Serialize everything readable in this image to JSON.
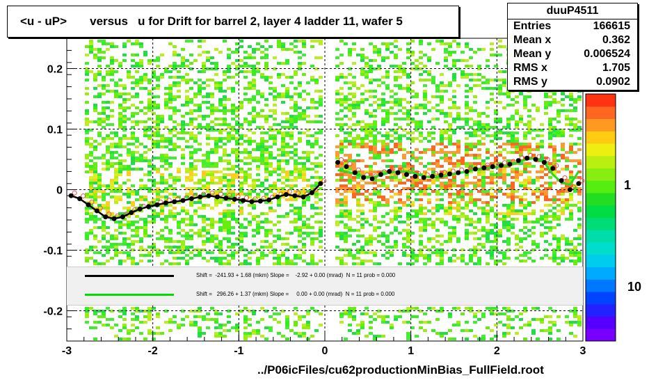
{
  "title": "<u - uP>       versus   u for Drift for barrel 2, layer 4 ladder 11, wafer 5",
  "stats": {
    "name": "duuP4511",
    "rows": [
      {
        "label": "Entries",
        "value": "166615"
      },
      {
        "label": "Mean x",
        "value": "0.362"
      },
      {
        "label": "Mean y",
        "value": "0.006524"
      },
      {
        "label": "RMS x",
        "value": "1.705"
      },
      {
        "label": "RMS y",
        "value": "0.0902"
      }
    ]
  },
  "footer": "../P06icFiles/cu62productionMinBias_FullField.root",
  "legend": [
    {
      "color": "#000000",
      "text": "Shift =  -241.93 + 1.68 (mkm) Slope =    -2.92 + 0.00 (mrad)  N = 11 prob = 0.000"
    },
    {
      "color": "#00dd00",
      "text": "Shift =   296.26 + 1.37 (mkm) Slope =     0.00 + 0.00 (mrad)  N = 11 prob = 0.000"
    }
  ],
  "colorbar_labels": [
    "1",
    "10"
  ],
  "colors": {
    "black_series": "#000000",
    "green_series": "#22dd22",
    "red_markers": "#ff4444"
  },
  "chart_data": {
    "type": "heatmap",
    "title": "<u - uP>       versus   u for Drift for barrel 2, layer 4 ladder 11, wafer 5",
    "xlim": [
      -3,
      3
    ],
    "ylim": [
      -0.25,
      0.25
    ],
    "x_ticks": [
      "-3",
      "-2",
      "-1",
      "0",
      "1",
      "2",
      "3"
    ],
    "y_ticks": [
      "-0.2",
      "-0.1",
      "0",
      "0.1",
      "0.2"
    ],
    "grid": true,
    "series": [
      {
        "color": "#000000",
        "x": [
          -2.95,
          -2.85,
          -2.75,
          -2.65,
          -2.55,
          -2.45,
          -2.35,
          -2.25,
          -2.15,
          -2.05,
          -1.95,
          -1.85,
          -1.75,
          -1.65,
          -1.55,
          -1.45,
          -1.35,
          -1.25,
          -1.15,
          -1.05,
          -0.95,
          -0.85,
          -0.75,
          -0.65,
          -0.55,
          -0.45,
          -0.35,
          -0.25,
          -0.15,
          -0.05,
          0.15,
          0.25,
          0.35,
          0.45,
          0.55,
          0.65,
          0.75,
          0.85,
          0.95,
          1.05,
          1.15,
          1.25,
          1.35,
          1.45,
          1.55,
          1.65,
          1.75,
          1.85,
          1.95,
          2.05,
          2.15,
          2.25,
          2.35,
          2.45,
          2.55,
          2.65,
          2.75,
          2.85,
          2.95
        ],
        "y": [
          -0.01,
          -0.015,
          -0.025,
          -0.035,
          -0.045,
          -0.048,
          -0.045,
          -0.038,
          -0.032,
          -0.028,
          -0.025,
          -0.022,
          -0.02,
          -0.018,
          -0.015,
          -0.012,
          -0.01,
          -0.012,
          -0.014,
          -0.016,
          -0.018,
          -0.02,
          -0.019,
          -0.017,
          -0.012,
          -0.008,
          -0.01,
          -0.012,
          -0.005,
          0.01,
          0.045,
          0.038,
          0.028,
          0.02,
          0.018,
          0.025,
          0.03,
          0.028,
          0.025,
          0.022,
          0.02,
          0.022,
          0.024,
          0.026,
          0.028,
          0.03,
          0.034,
          0.036,
          0.038,
          0.04,
          0.042,
          0.048,
          0.052,
          0.05,
          0.045,
          0.035,
          0.015,
          0.0,
          0.01
        ]
      },
      {
        "color": "#22dd22",
        "x": [
          0.15,
          0.25,
          0.35,
          0.45,
          0.55,
          0.65,
          0.75,
          0.85,
          0.95,
          1.05,
          1.15,
          1.25,
          1.35,
          1.45,
          1.55,
          1.65,
          1.75,
          1.85,
          1.95,
          2.05,
          2.15,
          2.25,
          2.35,
          2.45,
          2.55,
          2.65,
          2.75,
          2.85,
          2.95
        ],
        "y": [
          0.032,
          0.03,
          0.026,
          0.022,
          0.02,
          0.024,
          0.028,
          0.03,
          0.03,
          0.027,
          0.022,
          0.02,
          0.021,
          0.024,
          0.027,
          0.03,
          0.033,
          0.035,
          0.036,
          0.038,
          0.04,
          0.045,
          0.05,
          0.052,
          0.045,
          0.025,
          0.012,
          0.008,
          0.03
        ]
      }
    ]
  }
}
